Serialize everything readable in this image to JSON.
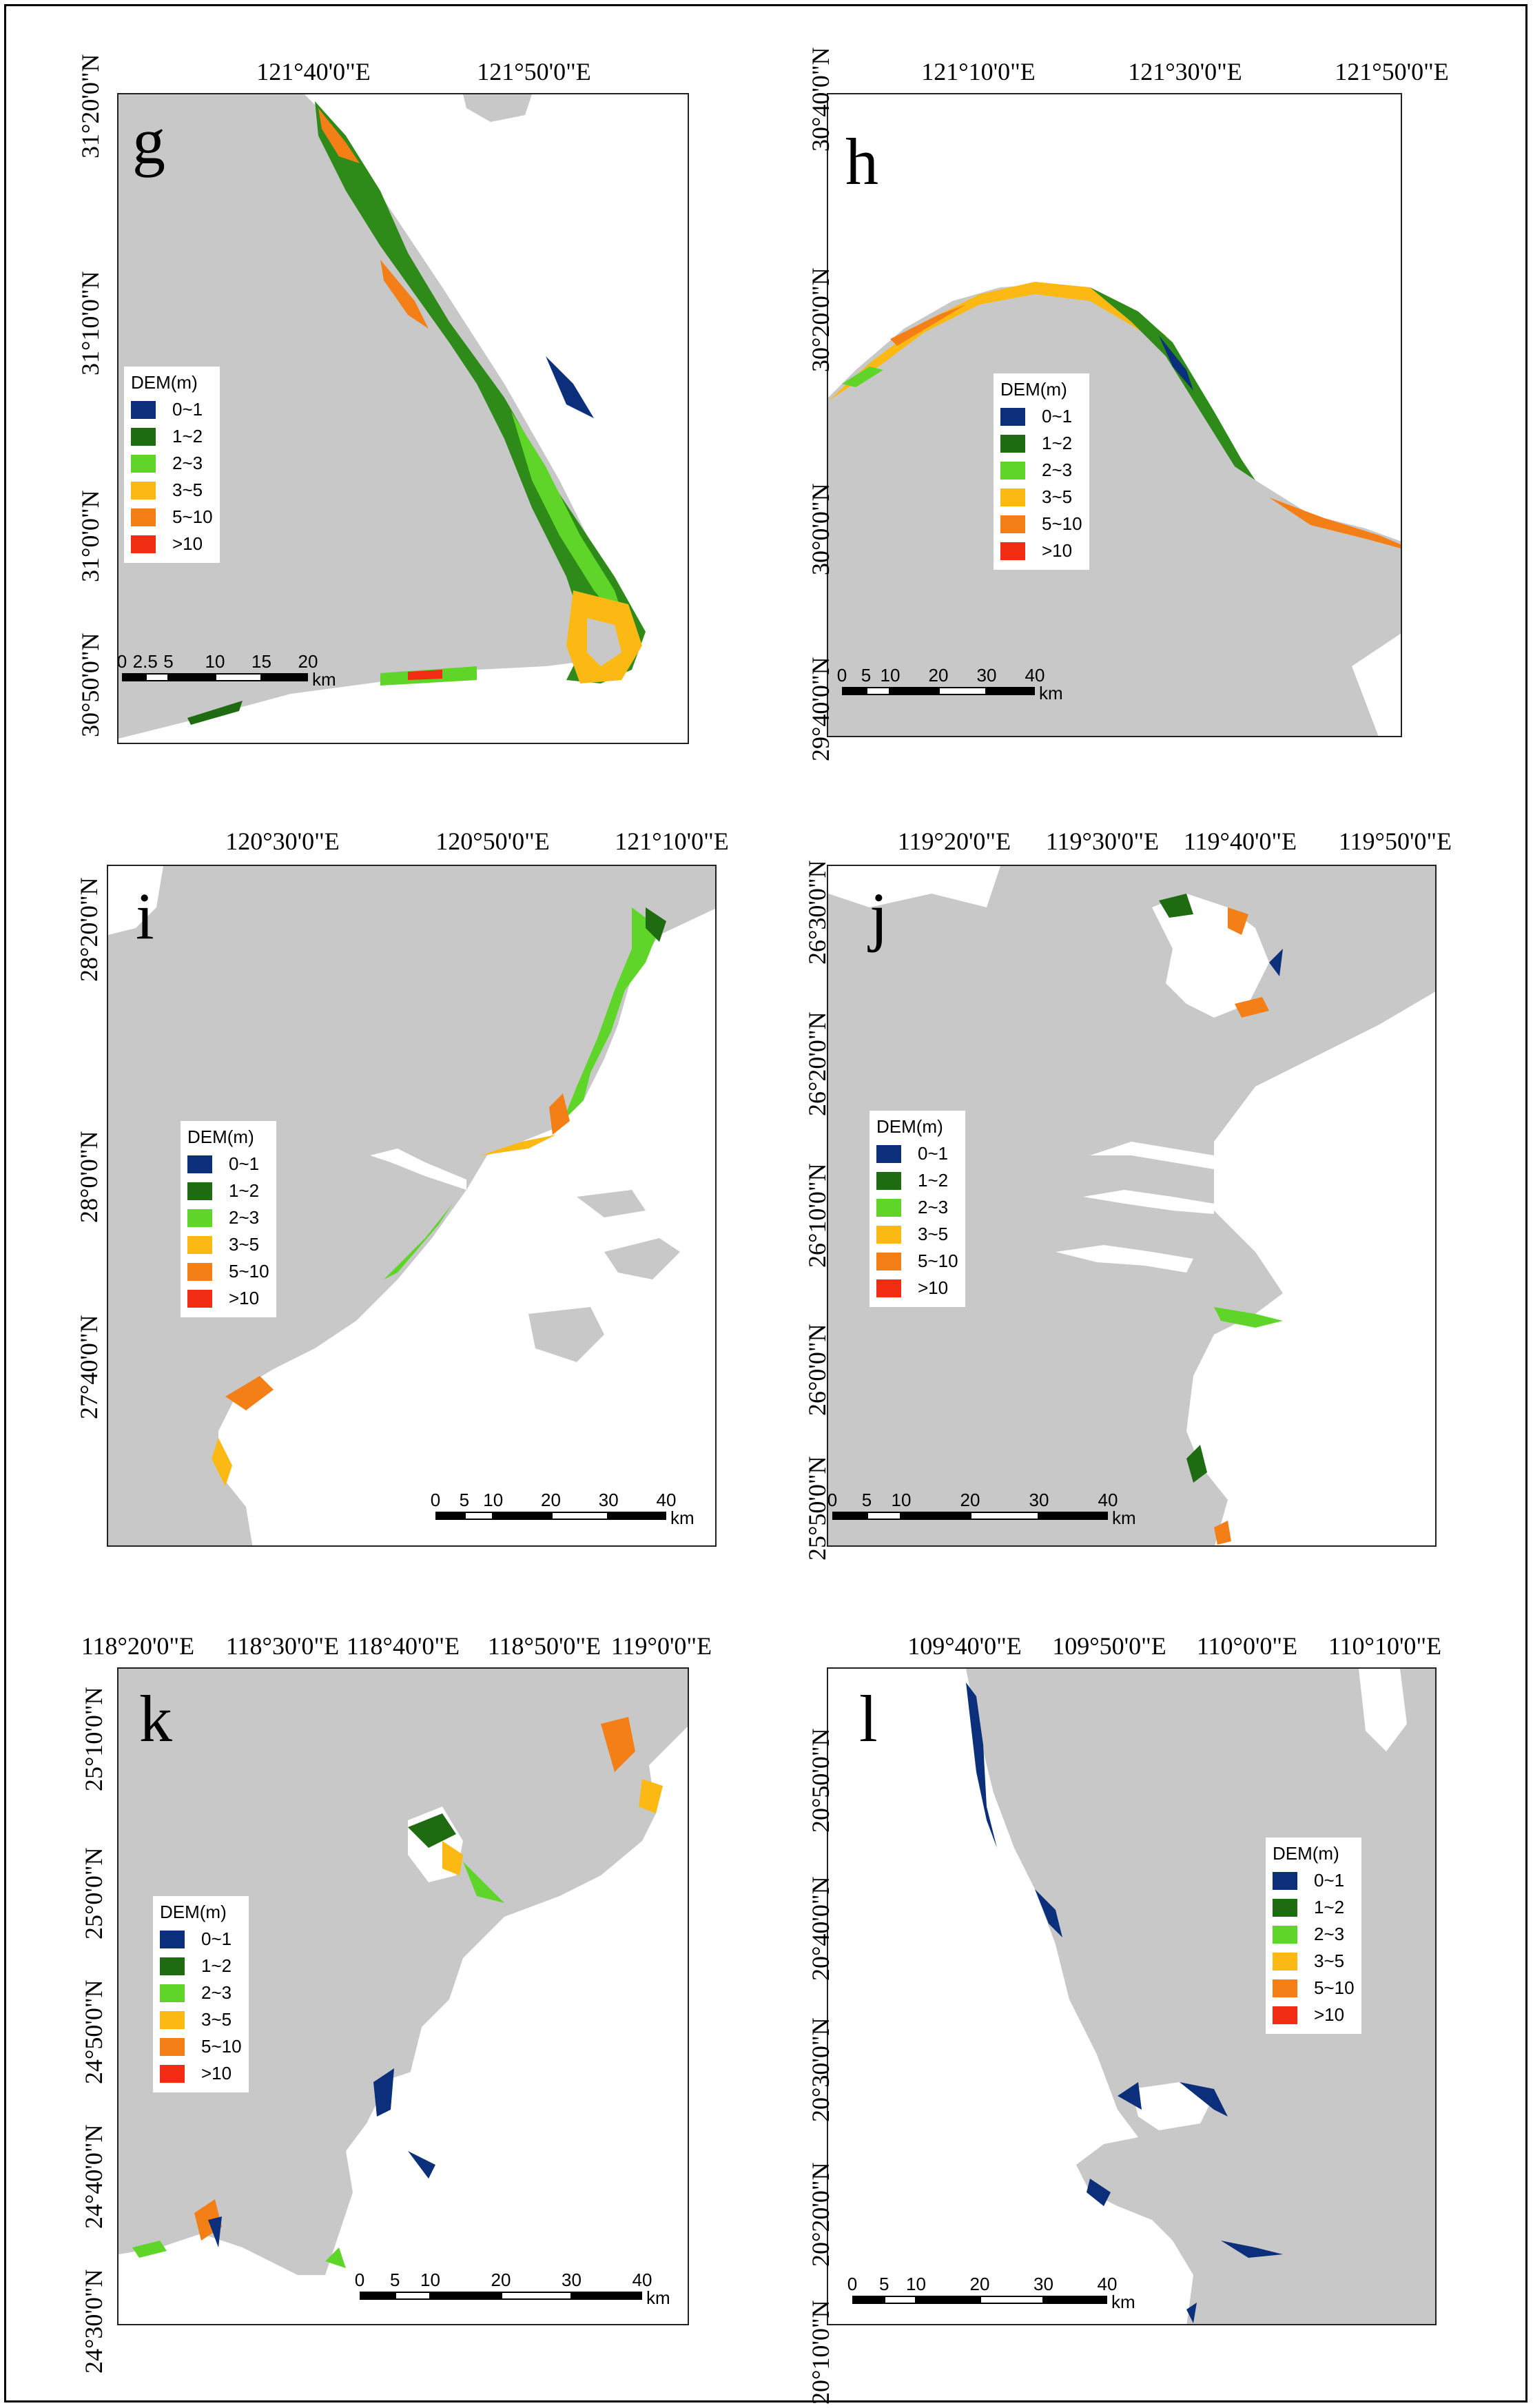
{
  "legend": {
    "title": "DEM(m)",
    "classes": [
      {
        "label": "0~1",
        "color": "#0b2f7a"
      },
      {
        "label": "1~2",
        "color": "#1e6b12"
      },
      {
        "label": "2~3",
        "color": "#5fd52a"
      },
      {
        "label": "3~5",
        "color": "#fdb913"
      },
      {
        "label": "5~10",
        "color": "#f57f17"
      },
      {
        "label": ">10",
        "color": "#f22c12"
      }
    ]
  },
  "colors": {
    "land": "#c8c8c8",
    "water": "#ffffff"
  },
  "panels": [
    {
      "letter": "g",
      "lon_labels": [
        "121°40'0\"E",
        "121°50'0\"E"
      ],
      "lat_labels": [
        "31°20'0\"N",
        "31°10'0\"N",
        "31°0'0\"N",
        "30°50'0\"N"
      ],
      "scale": {
        "ticks": [
          "0",
          "2.5",
          "5",
          "10",
          "15",
          "20"
        ],
        "unit": "km"
      }
    },
    {
      "letter": "h",
      "lon_labels": [
        "121°10'0\"E",
        "121°30'0\"E",
        "121°50'0\"E"
      ],
      "lat_labels": [
        "30°40'0\"N",
        "30°20'0\"N",
        "30°0'0\"N",
        "29°40'0\"N"
      ],
      "scale": {
        "ticks": [
          "0",
          "5",
          "10",
          "20",
          "30",
          "40"
        ],
        "unit": "km"
      }
    },
    {
      "letter": "i",
      "lon_labels": [
        "120°30'0\"E",
        "120°50'0\"E",
        "121°10'0\"E"
      ],
      "lat_labels": [
        "28°20'0\"N",
        "28°0'0\"N",
        "27°40'0\"N"
      ],
      "scale": {
        "ticks": [
          "0",
          "5",
          "10",
          "20",
          "30",
          "40"
        ],
        "unit": "km"
      }
    },
    {
      "letter": "j",
      "lon_labels": [
        "119°20'0\"E",
        "119°30'0\"E",
        "119°40'0\"E",
        "119°50'0\"E"
      ],
      "lat_labels": [
        "26°30'0\"N",
        "26°20'0\"N",
        "26°10'0\"N",
        "26°0'0\"N",
        "25°50'0\"N"
      ],
      "scale": {
        "ticks": [
          "0",
          "5",
          "10",
          "20",
          "30",
          "40"
        ],
        "unit": "km"
      }
    },
    {
      "letter": "k",
      "lon_labels": [
        "118°20'0\"E",
        "118°30'0\"E",
        "118°40'0\"E",
        "118°50'0\"E",
        "119°0'0\"E"
      ],
      "lat_labels": [
        "25°10'0\"N",
        "25°0'0\"N",
        "24°50'0\"N",
        "24°40'0\"N",
        "24°30'0\"N"
      ],
      "scale": {
        "ticks": [
          "0",
          "5",
          "10",
          "20",
          "30",
          "40"
        ],
        "unit": "km"
      }
    },
    {
      "letter": "l",
      "lon_labels": [
        "109°40'0\"E",
        "109°50'0\"E",
        "110°0'0\"E",
        "110°10'0\"E"
      ],
      "lat_labels": [
        "20°50'0\"N",
        "20°40'0\"N",
        "20°30'0\"N",
        "20°20'0\"N",
        "20°10'0\"N"
      ],
      "scale": {
        "ticks": [
          "0",
          "5",
          "10",
          "20",
          "30",
          "40"
        ],
        "unit": "km"
      }
    }
  ]
}
